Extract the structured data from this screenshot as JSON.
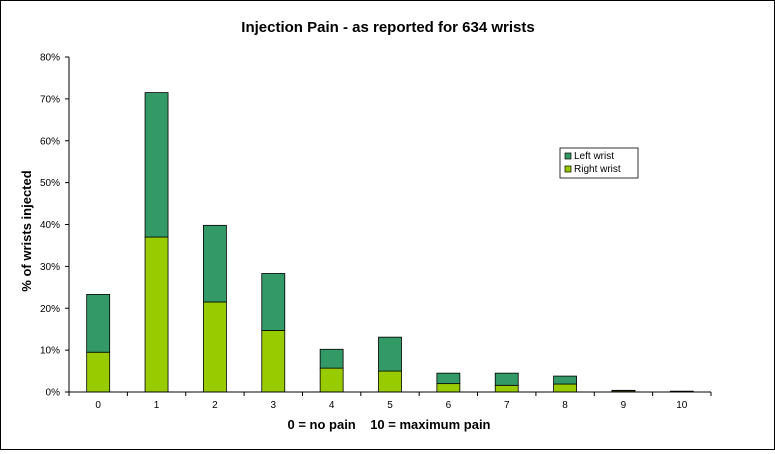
{
  "chart_data": {
    "type": "bar",
    "stacked": true,
    "title": "Injection Pain - as reported for 634 wrists",
    "xlabel": "0 = no pain    10 = maximum pain",
    "ylabel": "% of wrists injected",
    "categories": [
      "0",
      "1",
      "2",
      "3",
      "4",
      "5",
      "6",
      "7",
      "8",
      "9",
      "10"
    ],
    "y_ticks": [
      "0%",
      "10%",
      "20%",
      "30%",
      "40%",
      "50%",
      "60%",
      "70%",
      "80%"
    ],
    "ylim": [
      0,
      80
    ],
    "grid": false,
    "legend_position": "right",
    "series": [
      {
        "name": "Right wrist",
        "color": "#99cc00",
        "values": [
          9.5,
          37.0,
          21.5,
          14.7,
          5.7,
          5.0,
          2.0,
          1.6,
          1.9,
          0.3,
          0.0
        ]
      },
      {
        "name": "Left wrist",
        "color": "#339966",
        "values": [
          13.8,
          34.5,
          18.3,
          13.6,
          4.5,
          8.1,
          2.5,
          2.9,
          1.9,
          0.1,
          0.2
        ]
      }
    ],
    "legend": [
      "Left wrist",
      "Right wrist"
    ]
  }
}
